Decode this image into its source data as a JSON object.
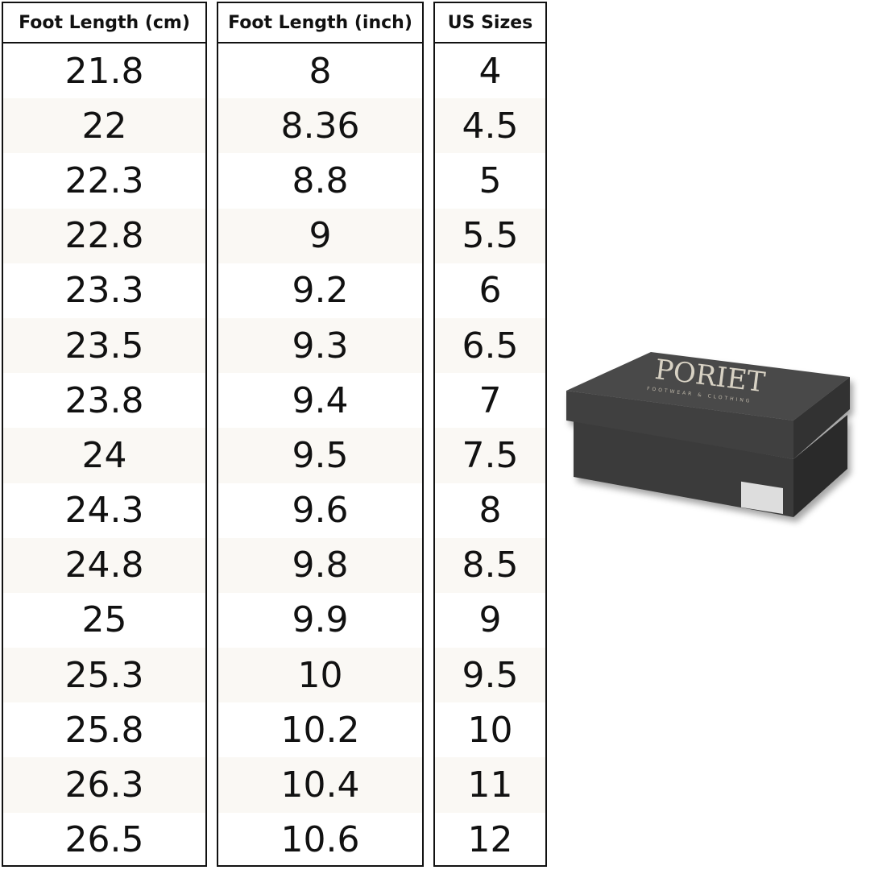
{
  "table": {
    "headers": [
      "Foot Length (cm)",
      "Foot Length (inch)",
      "US Sizes"
    ],
    "rows": [
      [
        "21.8",
        "8",
        "4"
      ],
      [
        "22",
        "8.36",
        "4.5"
      ],
      [
        "22.3",
        "8.8",
        "5"
      ],
      [
        "22.8",
        "9",
        "5.5"
      ],
      [
        "23.3",
        "9.2",
        "6"
      ],
      [
        "23.5",
        "9.3",
        "6.5"
      ],
      [
        "23.8",
        "9.4",
        "7"
      ],
      [
        "24",
        "9.5",
        "7.5"
      ],
      [
        "24.3",
        "9.6",
        "8"
      ],
      [
        "24.8",
        "9.8",
        "8.5"
      ],
      [
        "25",
        "9.9",
        "9"
      ],
      [
        "25.3",
        "10",
        "9.5"
      ],
      [
        "25.8",
        "10.2",
        "10"
      ],
      [
        "26.3",
        "10.4",
        "11"
      ],
      [
        "26.5",
        "10.6",
        "12"
      ]
    ]
  },
  "box": {
    "brand": "PORIET",
    "tagline": "FOOTWEAR & CLOTHING"
  }
}
